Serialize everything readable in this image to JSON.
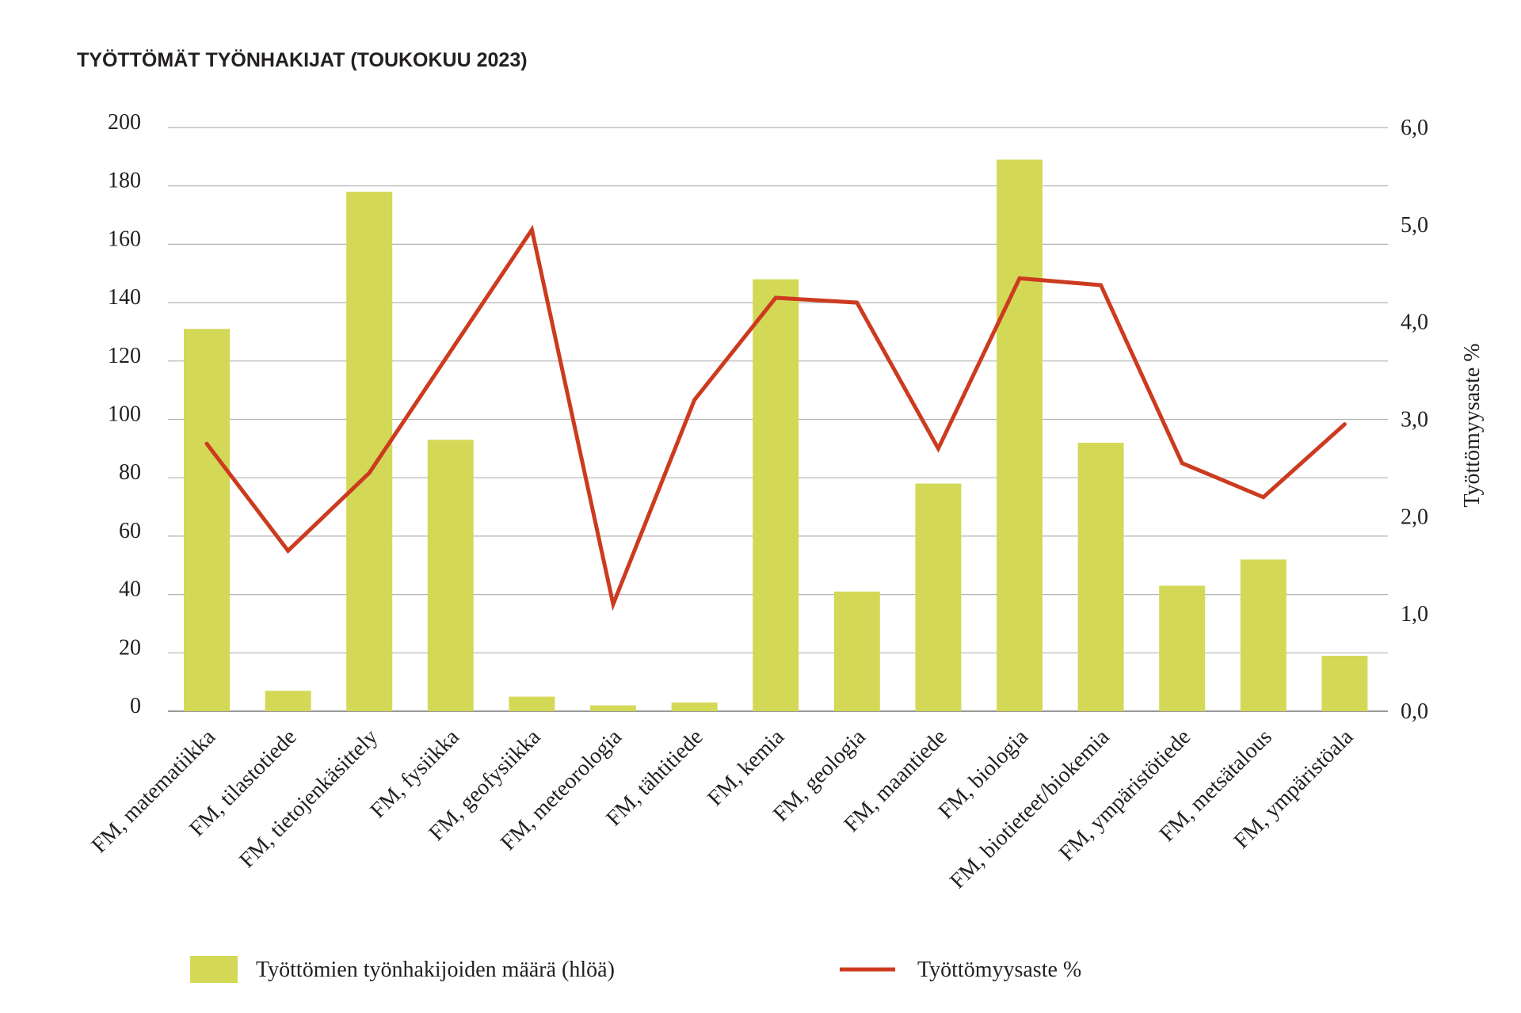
{
  "chart_data": {
    "type": "bar",
    "title": "TYÖTTÖMÄT TYÖNHAKIJAT (TOUKOKUU 2023)",
    "xlabel": "",
    "ylabel": "",
    "y2label": "Työttömyysaste %",
    "ylim": [
      0,
      200
    ],
    "y2lim": [
      0,
      6
    ],
    "yticks": [
      "0",
      "20",
      "40",
      "60",
      "80",
      "100",
      "120",
      "140",
      "160",
      "180",
      "200"
    ],
    "y2ticks": [
      "0,0",
      "1,0",
      "2,0",
      "3,0",
      "4,0",
      "5,0",
      "6,0"
    ],
    "grid": true,
    "legend_position": "bottom",
    "categories": [
      "FM, matematiikka",
      "FM, tilastotiede",
      "FM, tietojenkäsittely",
      "FM, fysiikka",
      "FM, geofysiikka",
      "FM, meteorologia",
      "FM, tähtitiede",
      "FM, kemia",
      "FM, geologia",
      "FM, maantiede",
      "FM, biologia",
      "FM, biotieteet/biokemia",
      "FM, ympäristötiede",
      "FM, metsätalous",
      "FM, ympäristöala"
    ],
    "series": [
      {
        "name": "Työttömien työnhakijoiden määrä (hlöä)",
        "type": "bar",
        "axis": "left",
        "color": "#d3d957",
        "values": [
          131,
          7,
          178,
          93,
          5,
          2,
          3,
          148,
          41,
          78,
          189,
          92,
          43,
          52,
          19
        ]
      },
      {
        "name": "Työttömyysaste %",
        "type": "line",
        "axis": "right",
        "color": "#cc3b1f",
        "values": [
          2.75,
          1.65,
          2.45,
          3.7,
          4.95,
          1.1,
          3.2,
          4.25,
          4.2,
          2.7,
          4.45,
          4.38,
          2.55,
          2.2,
          2.95
        ]
      }
    ]
  }
}
